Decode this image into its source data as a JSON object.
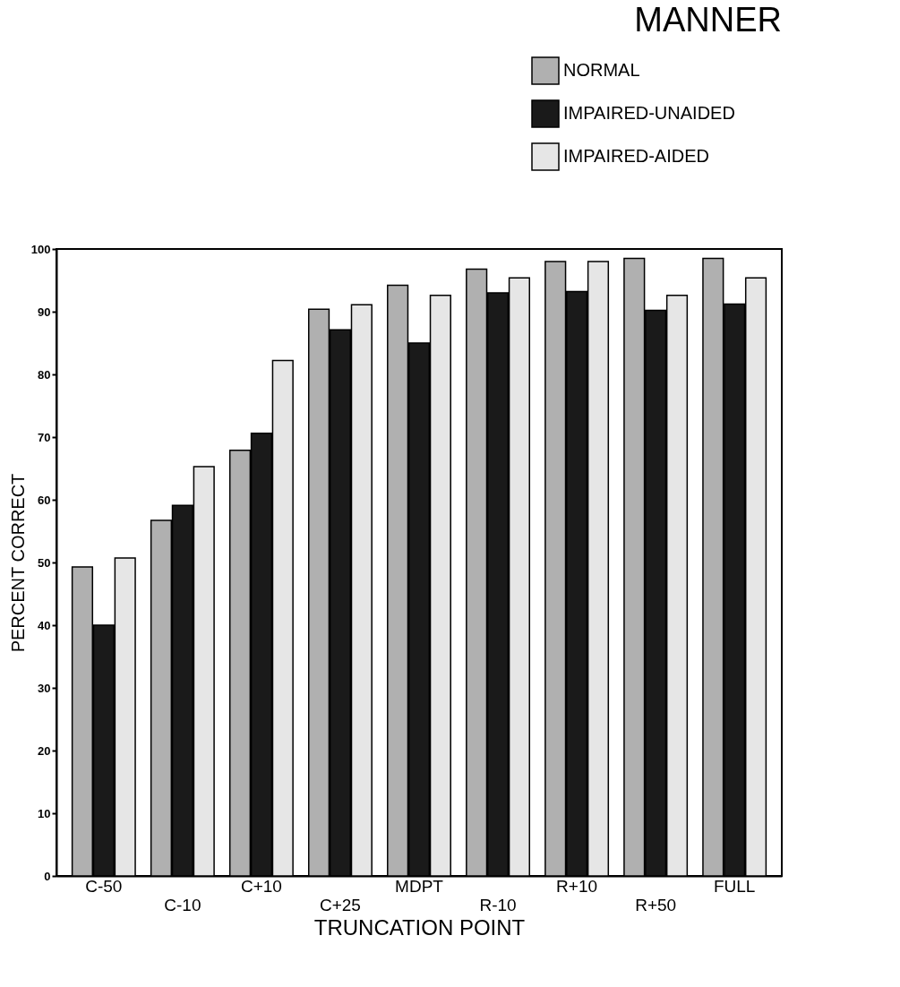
{
  "chart_data": {
    "type": "bar",
    "title": "MANNER",
    "xlabel": "TRUNCATION POINT",
    "ylabel": "PERCENT CORRECT",
    "categories": [
      "C-50",
      "C-10",
      "C+10",
      "C+25",
      "MDPT",
      "R-10",
      "R+10",
      "R+50",
      "FULL"
    ],
    "series": [
      {
        "name": "NORMAL",
        "color": "#b0b0b0",
        "values": [
          49.3,
          56.7,
          67.9,
          90.4,
          94.2,
          96.8,
          98,
          98.5,
          98.5
        ]
      },
      {
        "name": "IMPAIRED-UNAIDED",
        "color": "#1a1a1a",
        "values": [
          40,
          59.1,
          70.6,
          87.1,
          85,
          93,
          93.2,
          90.2,
          91.2
        ]
      },
      {
        "name": "IMPAIRED-AIDED",
        "color": "#e6e6e6",
        "values": [
          50.7,
          65.3,
          82.2,
          91.1,
          92.6,
          95.4,
          98,
          92.6,
          95.4
        ]
      }
    ],
    "ylim": [
      0,
      100
    ],
    "yticks": [
      0,
      10,
      20,
      30,
      40,
      50,
      60,
      70,
      80,
      90,
      100
    ],
    "grid": false,
    "legend": "top right"
  }
}
